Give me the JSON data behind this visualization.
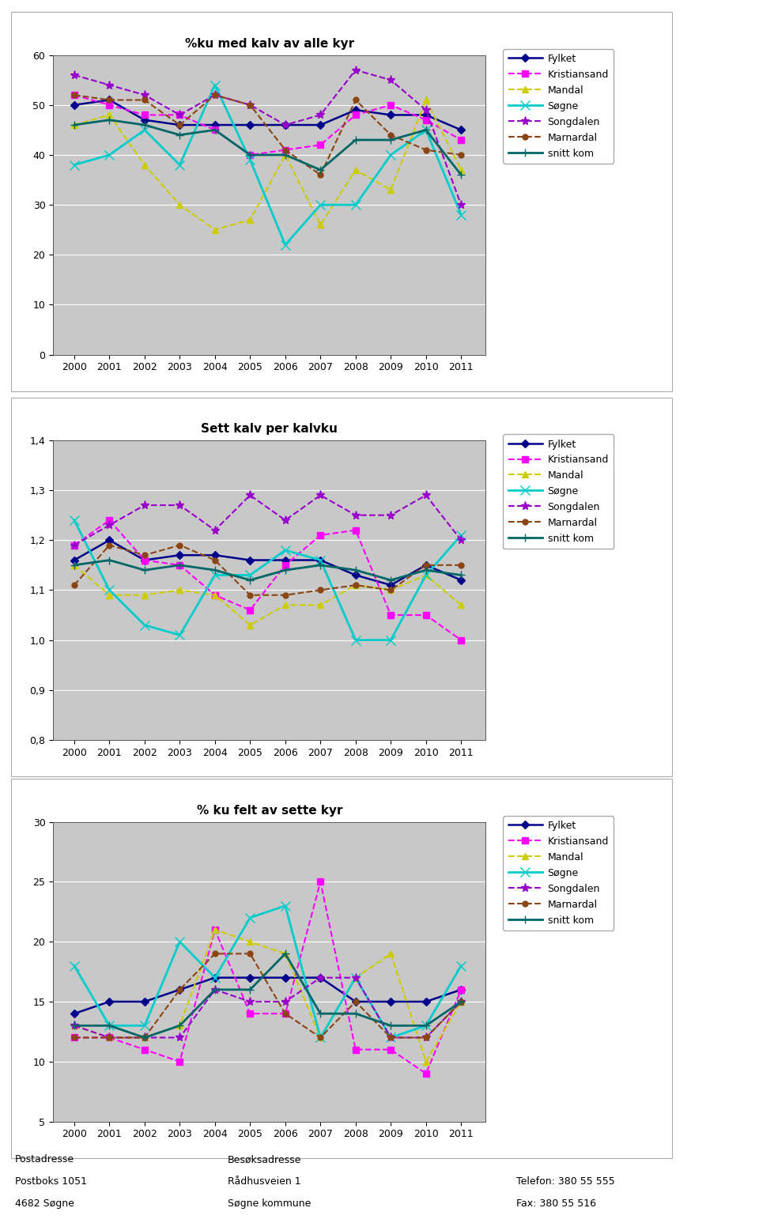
{
  "years": [
    2000,
    2001,
    2002,
    2003,
    2004,
    2005,
    2006,
    2007,
    2008,
    2009,
    2010,
    2011
  ],
  "chart1": {
    "title": "%ku med kalv av alle kyr",
    "ylim": [
      0,
      60
    ],
    "yticks": [
      0,
      10,
      20,
      30,
      40,
      50,
      60
    ],
    "series": {
      "Fylket": [
        50,
        51,
        47,
        46,
        46,
        46,
        46,
        46,
        49,
        48,
        48,
        45
      ],
      "Kristiansand": [
        52,
        50,
        48,
        48,
        45,
        40,
        41,
        42,
        48,
        50,
        47,
        43
      ],
      "Mandal": [
        46,
        48,
        38,
        30,
        25,
        27,
        40,
        26,
        37,
        33,
        51,
        37
      ],
      "Søgne": [
        38,
        40,
        45,
        38,
        54,
        39,
        22,
        30,
        30,
        40,
        45,
        28
      ],
      "Songdalen": [
        56,
        54,
        52,
        48,
        52,
        50,
        46,
        48,
        57,
        55,
        49,
        30
      ],
      "Marnardal": [
        52,
        51,
        51,
        46,
        52,
        50,
        41,
        36,
        51,
        44,
        41,
        40
      ],
      "snitt kom": [
        46,
        47,
        46,
        44,
        45,
        40,
        40,
        37,
        43,
        43,
        45,
        36
      ]
    }
  },
  "chart2": {
    "title": "Sett kalv per kalvku",
    "ylim": [
      0.8,
      1.4
    ],
    "yticks": [
      0.8,
      0.9,
      1.0,
      1.1,
      1.2,
      1.3,
      1.4
    ],
    "series": {
      "Fylket": [
        1.16,
        1.2,
        1.16,
        1.17,
        1.17,
        1.16,
        1.16,
        1.16,
        1.13,
        1.11,
        1.15,
        1.12
      ],
      "Kristiansand": [
        1.19,
        1.24,
        1.16,
        1.15,
        1.09,
        1.06,
        1.15,
        1.21,
        1.22,
        1.05,
        1.05,
        1.0
      ],
      "Mandal": [
        1.15,
        1.09,
        1.09,
        1.1,
        1.09,
        1.03,
        1.07,
        1.07,
        1.11,
        1.1,
        1.13,
        1.07
      ],
      "Søgne": [
        1.24,
        1.1,
        1.03,
        1.01,
        1.13,
        1.13,
        1.18,
        1.16,
        1.0,
        1.0,
        1.13,
        1.21
      ],
      "Songdalen": [
        1.19,
        1.23,
        1.27,
        1.27,
        1.22,
        1.29,
        1.24,
        1.29,
        1.25,
        1.25,
        1.29,
        1.2
      ],
      "Marnardal": [
        1.11,
        1.19,
        1.17,
        1.19,
        1.16,
        1.09,
        1.09,
        1.1,
        1.11,
        1.1,
        1.15,
        1.15
      ],
      "snitt kom": [
        1.15,
        1.16,
        1.14,
        1.15,
        1.14,
        1.12,
        1.14,
        1.15,
        1.14,
        1.12,
        1.14,
        1.13
      ]
    }
  },
  "chart3": {
    "title": "% ku felt av sette kyr",
    "ylim": [
      5,
      30
    ],
    "yticks": [
      5,
      10,
      15,
      20,
      25,
      30
    ],
    "series": {
      "Fylket": [
        14,
        15,
        15,
        16,
        17,
        17,
        17,
        17,
        15,
        15,
        15,
        16
      ],
      "Kristiansand": [
        12,
        12,
        11,
        10,
        21,
        14,
        14,
        25,
        11,
        11,
        9,
        16
      ],
      "Mandal": [
        13,
        12,
        12,
        13,
        21,
        20,
        19,
        12,
        17,
        19,
        10,
        15
      ],
      "Søgne": [
        18,
        13,
        13,
        20,
        17,
        22,
        23,
        12,
        17,
        12,
        13,
        18
      ],
      "Songdalen": [
        13,
        12,
        12,
        12,
        16,
        15,
        15,
        17,
        17,
        12,
        12,
        15
      ],
      "Marnardal": [
        12,
        12,
        12,
        16,
        19,
        19,
        14,
        12,
        15,
        12,
        12,
        15
      ],
      "snitt kom": [
        13,
        13,
        12,
        13,
        16,
        16,
        19,
        14,
        14,
        13,
        13,
        15
      ]
    }
  },
  "series_styles": {
    "Fylket": {
      "color": "#00008B",
      "linestyle": "-",
      "marker": "D",
      "markersize": 5,
      "linewidth": 1.8
    },
    "Kristiansand": {
      "color": "#FF00FF",
      "linestyle": "--",
      "marker": "s",
      "markersize": 6,
      "linewidth": 1.5
    },
    "Mandal": {
      "color": "#CCCC00",
      "linestyle": "--",
      "marker": "^",
      "markersize": 6,
      "linewidth": 1.5
    },
    "Søgne": {
      "color": "#00CCCC",
      "linestyle": "-",
      "marker": "x",
      "markersize": 8,
      "linewidth": 2
    },
    "Songdalen": {
      "color": "#9900CC",
      "linestyle": "--",
      "marker": "*",
      "markersize": 8,
      "linewidth": 1.5
    },
    "Marnardal": {
      "color": "#8B4513",
      "linestyle": "--",
      "marker": "o",
      "markersize": 5,
      "linewidth": 1.5
    },
    "snitt kom": {
      "color": "#006666",
      "linestyle": "-",
      "marker": "+",
      "markersize": 7,
      "linewidth": 2
    }
  },
  "legend_order": [
    "Fylket",
    "Kristiansand",
    "Mandal",
    "Søgne",
    "Songdalen",
    "Marnardal",
    "snitt kom"
  ],
  "footer": {
    "left_col": [
      "Postadresse",
      "Postboks 1051",
      "4682 Søgne"
    ],
    "mid_col": [
      "Besøksadresse",
      "Rådhusveien 1",
      "Søgne kommune"
    ],
    "right_col": [
      "",
      "Telefon: 380 55 555",
      "Fax: 380 55 516"
    ]
  },
  "plot_bg_color": "#C8C8C8",
  "fig_width": 9.6,
  "fig_height": 15.47,
  "dpi": 100
}
